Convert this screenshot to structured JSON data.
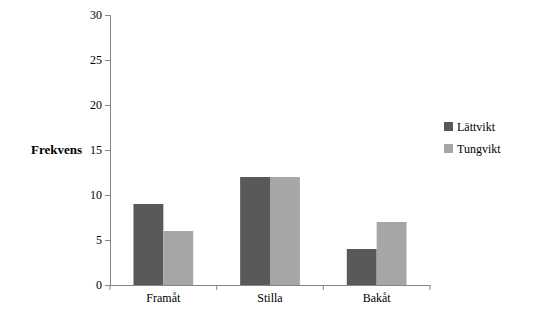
{
  "chart_data": {
    "type": "bar",
    "y_label": "Frekvens",
    "categories": [
      "Framåt",
      "Stilla",
      "Bakåt"
    ],
    "series": [
      {
        "name": "Lättvikt",
        "color": "#595959",
        "values": [
          9,
          12,
          4
        ]
      },
      {
        "name": "Tungvikt",
        "color": "#a6a6a6",
        "values": [
          6,
          12,
          7
        ]
      }
    ],
    "ylim": [
      0,
      30
    ],
    "yticks": [
      0,
      5,
      10,
      15,
      20,
      25,
      30
    ],
    "grid": false,
    "legend": "right"
  }
}
